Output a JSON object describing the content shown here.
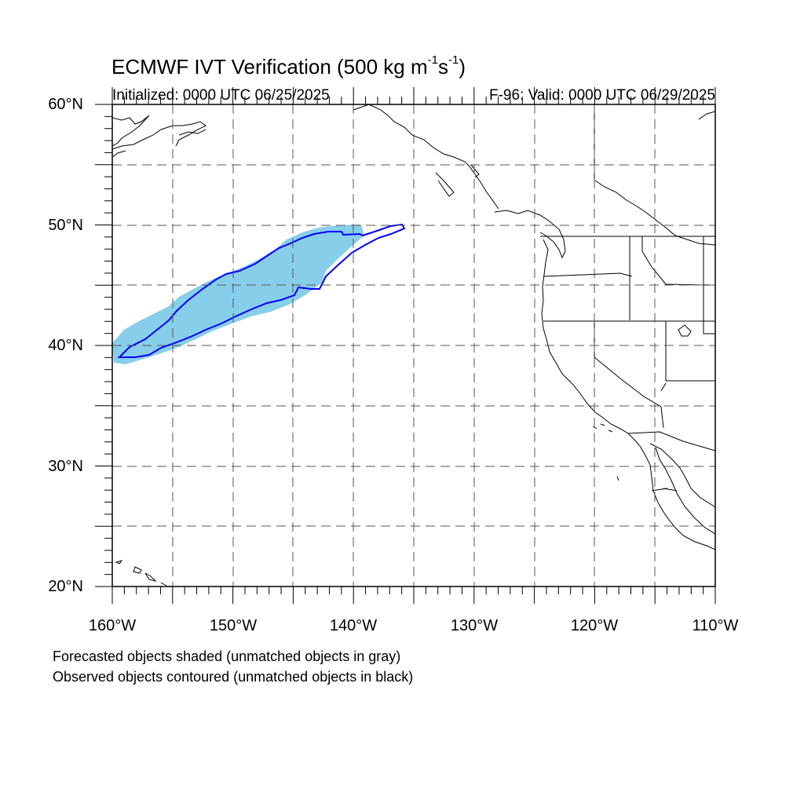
{
  "header": {
    "title_main": "ECMWF IVT Verification (500 kg m",
    "title_exp1": "-1",
    "title_mid": "s",
    "title_exp2": "-1",
    "title_end": ")",
    "initialized": "Initialized: 0000 UTC 06/25/2025",
    "valid": "F-96: Valid: 0000 UTC 06/29/2025"
  },
  "map": {
    "lon_range": [
      -160,
      -110
    ],
    "lat_range": [
      20,
      60
    ],
    "lat_labels": [
      "60°N",
      "50°N",
      "40°N",
      "30°N",
      "20°N"
    ],
    "lon_labels": [
      "160°W",
      "150°W",
      "140°W",
      "130°W",
      "120°W",
      "110°W"
    ],
    "colors": {
      "forecast_fill": "#87ceeb",
      "observed_contour": "#0000ff",
      "coast": "#000000"
    }
  },
  "notes": {
    "line1": "Forecasted objects shaded (unmatched objects in gray)",
    "line2": "Observed objects contoured (unmatched objects in black)"
  }
}
